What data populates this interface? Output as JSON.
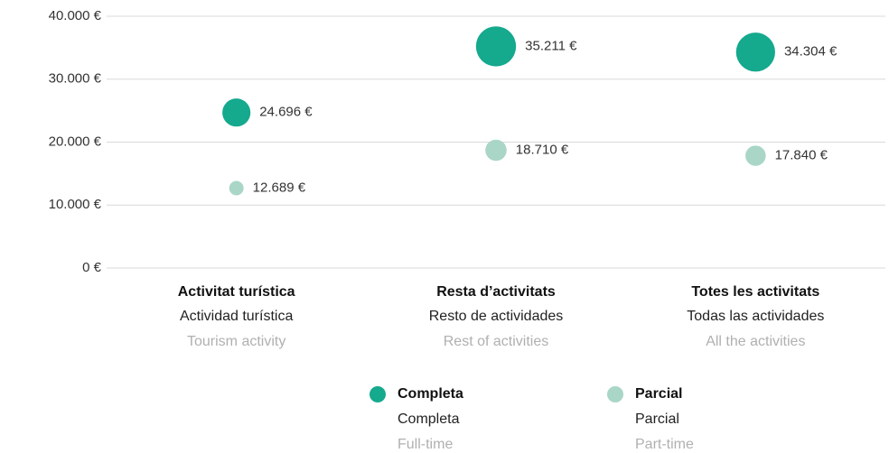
{
  "chart_data": {
    "type": "bubble",
    "categories": [
      "Activitat turística",
      "Resta d’activitats",
      "Totes les activitats"
    ],
    "categories_es": [
      "Actividad turística",
      "Resto de actividades",
      "Todas las actividades"
    ],
    "categories_en": [
      "Tourism activity",
      "Rest of activities",
      "All the activities"
    ],
    "series": [
      {
        "name": "Completa",
        "name_es": "Completa",
        "name_en": "Full-time",
        "color": "#15a98e",
        "values": [
          24696,
          35211,
          34304
        ],
        "value_labels": [
          "24.696 €",
          "35.211 €",
          "34.304 €"
        ]
      },
      {
        "name": "Parcial",
        "name_es": "Parcial",
        "name_en": "Part-time",
        "color": "#a9d6c7",
        "values": [
          12689,
          18710,
          17840
        ],
        "value_labels": [
          "12.689 €",
          "18.710 €",
          "17.840 €"
        ]
      }
    ],
    "ylim": [
      0,
      40000
    ],
    "yticks": [
      {
        "value": 0,
        "label": "0 €"
      },
      {
        "value": 10000,
        "label": "10.000 €"
      },
      {
        "value": 20000,
        "label": "20.000 €"
      },
      {
        "value": 30000,
        "label": "30.000 €"
      },
      {
        "value": 40000,
        "label": "40.000 €"
      }
    ],
    "grid": true
  }
}
